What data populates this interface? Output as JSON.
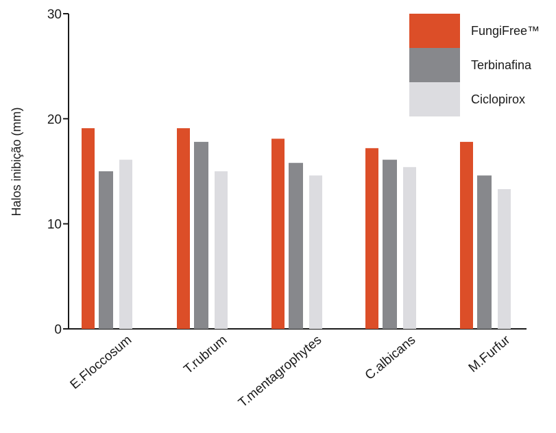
{
  "chart_data": {
    "type": "bar",
    "ylabel": "Halos inibição (mm)",
    "xlabel": "",
    "ylim": [
      0,
      30
    ],
    "yticks": [
      0,
      10,
      20,
      30
    ],
    "categories": [
      "E.Floccosum",
      "T.rubrum",
      "T.mentagrophytes",
      "C.albicans",
      "M.Furfur"
    ],
    "series": [
      {
        "name": "FungiFree™",
        "color": "#dc4e28",
        "values": [
          19.1,
          19.1,
          18.1,
          17.2,
          17.8
        ]
      },
      {
        "name": "Terbinafina",
        "color": "#87888c",
        "values": [
          15.0,
          17.8,
          15.8,
          16.1,
          14.6
        ]
      },
      {
        "name": "Ciclopirox",
        "color": "#dcdce0",
        "values": [
          16.1,
          15.0,
          14.6,
          15.4,
          13.3
        ]
      }
    ],
    "legend_position": "top-right",
    "grid": false
  }
}
